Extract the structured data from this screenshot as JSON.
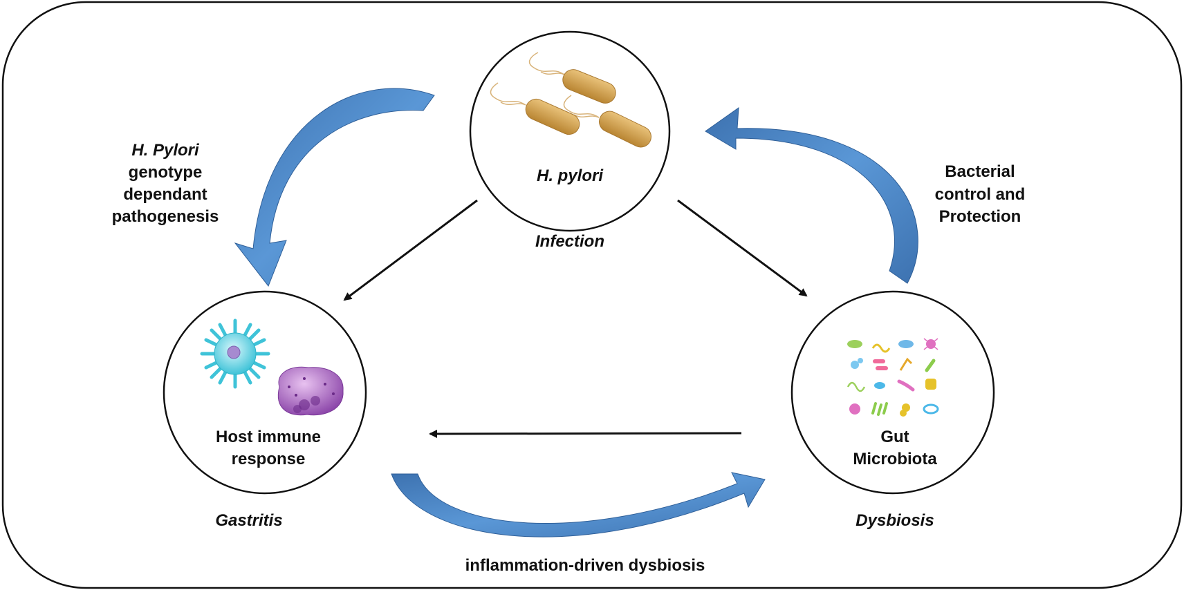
{
  "nodes": {
    "h_pylori": {
      "label": "H. pylori",
      "caption": "Infection",
      "icon": "rod-bacteria-icon"
    },
    "host": {
      "label_line1": "Host immune",
      "label_line2": "response",
      "caption": "Gastritis",
      "icon": "immune-cells-icon"
    },
    "gut": {
      "label_line1": "Gut",
      "label_line2": "Microbiota",
      "caption": "Dysbiosis",
      "icon": "microbes-grid-icon"
    }
  },
  "edges": {
    "left_curve": {
      "line1": "H. Pylori",
      "line2": "genotype",
      "line3": "dependant",
      "line4": "pathogenesis"
    },
    "right_curve": {
      "line1": "Bacterial",
      "line2": "control and",
      "line3": "Protection"
    },
    "bottom_curve": {
      "label": "inflammation-driven dysbiosis"
    }
  },
  "colors": {
    "curve_arrow": "#4a86c8",
    "curve_arrow_dark": "#3a6ea8",
    "bacteria": "#d4a04a",
    "immune_cyan": "#5fd0e0",
    "immune_purple": "#9a5bb8"
  }
}
